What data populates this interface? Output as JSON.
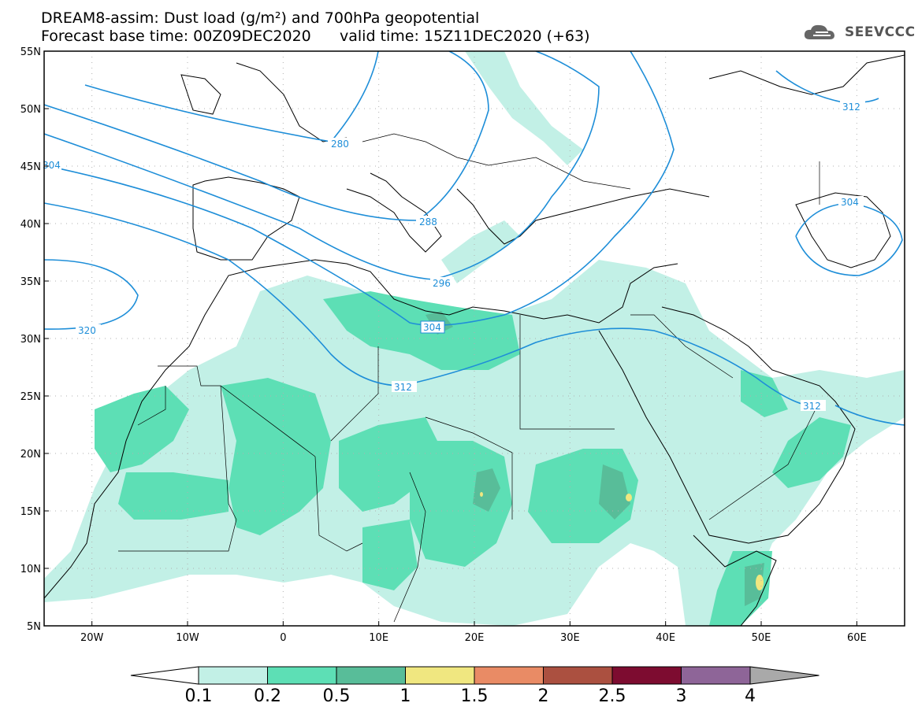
{
  "title": {
    "line1": "DREAM8-assim: Dust load (g/m²) and 700hPa geopotential",
    "line2": "Forecast base time: 00Z09DEC2020      valid time: 15Z11DEC2020 (+63)"
  },
  "logo": {
    "text": "SEEVCCC",
    "icon": "cloud-logo-icon"
  },
  "map": {
    "lat_labels": [
      "55N",
      "50N",
      "45N",
      "40N",
      "35N",
      "30N",
      "25N",
      "20N",
      "15N",
      "10N",
      "5N"
    ],
    "lon_labels": [
      "20W",
      "10W",
      "0",
      "10E",
      "20E",
      "30E",
      "40E",
      "50E",
      "60E"
    ],
    "lat_range": [
      5,
      55
    ],
    "lon_range": [
      -25,
      65
    ],
    "grid": true,
    "contour_color": "#1e8ed8",
    "contour_labels": [
      "280",
      "288",
      "296",
      "304",
      "312",
      "320",
      "304",
      "312",
      "304",
      "312"
    ]
  },
  "colorbar": {
    "labels": [
      "0.1",
      "0.2",
      "0.5",
      "1",
      "1.5",
      "2",
      "2.5",
      "3",
      "4"
    ],
    "colors": [
      "#c2f0e6",
      "#5ddfb5",
      "#58bd99",
      "#f0e780",
      "#e98b65",
      "#ab5040",
      "#7d0c30",
      "#8e6598",
      "#a9a9a9"
    ]
  }
}
